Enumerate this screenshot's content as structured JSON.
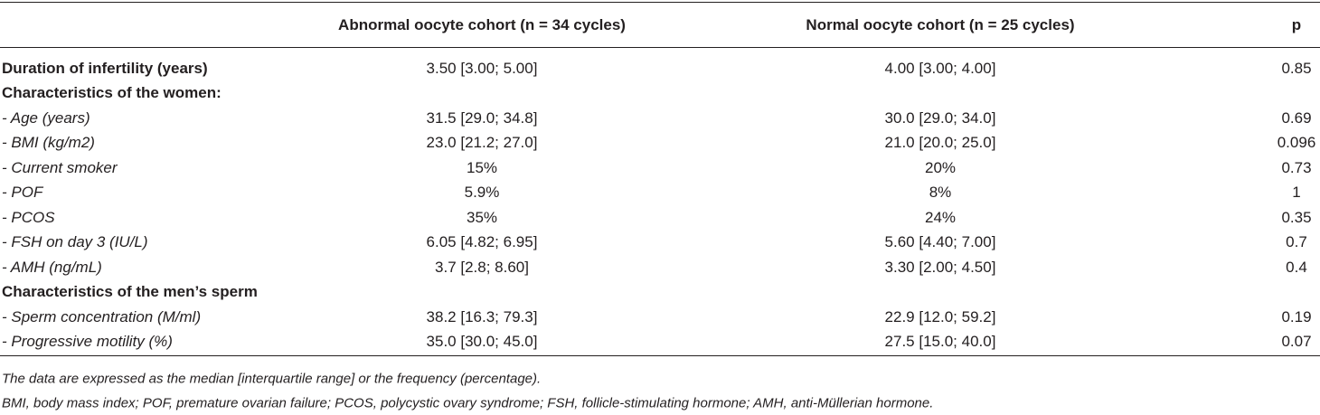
{
  "table": {
    "columns": [
      "Abnormal oocyte cohort (n = 34 cycles)",
      "Normal oocyte cohort (n = 25 cycles)",
      "p"
    ],
    "rows": [
      {
        "label": "Duration of infertility (years)",
        "cells": [
          "3.50 [3.00; 5.00]",
          "4.00 [3.00; 4.00]",
          "0.85"
        ]
      },
      {
        "label": "Characteristics of the women:"
      },
      {
        "label": "- Age (years)",
        "cells": [
          "31.5 [29.0; 34.8]",
          "30.0 [29.0; 34.0]",
          "0.69"
        ]
      },
      {
        "label": "- BMI (kg/m2)",
        "cells": [
          "23.0 [21.2; 27.0]",
          "21.0 [20.0; 25.0]",
          "0.096"
        ]
      },
      {
        "label": "- Current smoker",
        "cells": [
          "15%",
          "20%",
          "0.73"
        ]
      },
      {
        "label": "- POF",
        "cells": [
          "5.9%",
          "8%",
          "1"
        ]
      },
      {
        "label": "- PCOS",
        "cells": [
          "35%",
          "24%",
          "0.35"
        ]
      },
      {
        "label": "- FSH on day 3 (IU/L)",
        "cells": [
          "6.05 [4.82; 6.95]",
          "5.60 [4.40; 7.00]",
          "0.7"
        ]
      },
      {
        "label": "- AMH (ng/mL)",
        "cells": [
          "3.7 [2.8; 8.60]",
          "3.30 [2.00; 4.50]",
          "0.4"
        ]
      },
      {
        "label": "Characteristics of the men’s sperm"
      },
      {
        "label": "- Sperm concentration (M/ml)",
        "cells": [
          "38.2 [16.3; 79.3]",
          "22.9 [12.0; 59.2]",
          "0.19"
        ]
      },
      {
        "label": "- Progressive motility (%)",
        "cells": [
          "35.0 [30.0; 45.0]",
          "27.5 [15.0; 40.0]",
          "0.07"
        ]
      }
    ]
  },
  "footnotes": [
    "The data are expressed as the median [interquartile range] or the frequency (percentage).",
    "BMI, body mass index; POF, premature ovarian failure; PCOS, polycystic ovary syndrome; FSH, follicle-stimulating hormone; AMH, anti-Müllerian hormone."
  ]
}
